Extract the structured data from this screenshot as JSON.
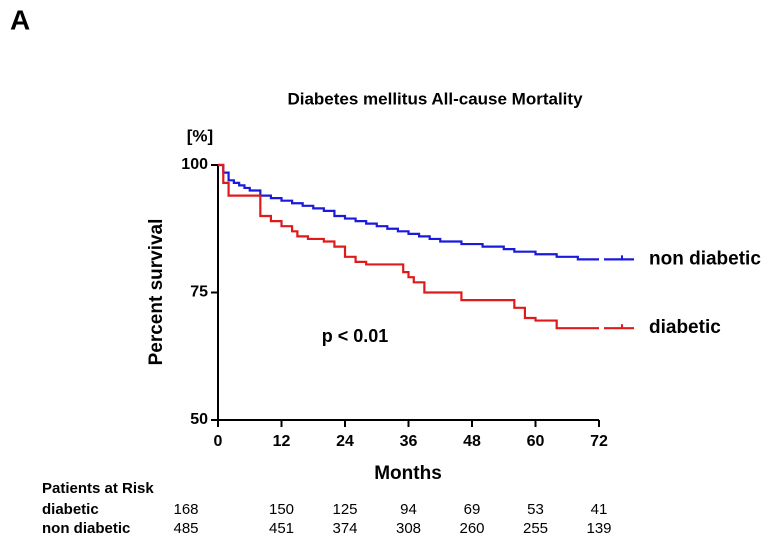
{
  "panel_label": "A",
  "chart_data": {
    "type": "line",
    "step": true,
    "title": "Diabetes mellitus All-cause Mortality",
    "y_unit_label": "[%]",
    "ylabel": "Percent survival",
    "xlabel": "Months",
    "annotation": "p < 0.01",
    "xlim": [
      0,
      72
    ],
    "xticks": [
      0,
      12,
      24,
      36,
      48,
      60,
      72
    ],
    "ylim": [
      50,
      100
    ],
    "yticks": [
      50,
      75,
      100
    ],
    "series": [
      {
        "name": "non diabetic",
        "color": "#1a1adc",
        "x": [
          0,
          1,
          2,
          3,
          4,
          5,
          6,
          8,
          10,
          12,
          14,
          16,
          18,
          20,
          22,
          24,
          26,
          28,
          30,
          32,
          34,
          36,
          38,
          40,
          42,
          46,
          50,
          54,
          56,
          60,
          64,
          68,
          72
        ],
        "values": [
          100,
          98.5,
          97,
          96.5,
          96,
          95.5,
          95,
          94,
          93.5,
          93,
          92.5,
          92,
          91.5,
          91,
          90,
          89.5,
          89,
          88.5,
          88,
          87.5,
          87,
          86.5,
          86,
          85.5,
          85,
          84.5,
          84,
          83.5,
          83,
          82.5,
          82,
          81.5,
          81.5
        ]
      },
      {
        "name": "diabetic",
        "color": "#e01a1a",
        "x": [
          0,
          1,
          2,
          8,
          10,
          12,
          14,
          15,
          17,
          20,
          22,
          24,
          26,
          28,
          34,
          35,
          36,
          37,
          39,
          46,
          56,
          58,
          60,
          64,
          72
        ],
        "values": [
          100,
          96.5,
          94,
          90,
          89,
          88,
          87,
          86,
          85.5,
          85,
          84,
          82,
          81,
          80.5,
          80.5,
          79,
          78,
          77,
          75,
          73.5,
          72,
          70,
          69.5,
          68,
          68
        ]
      }
    ],
    "risk_table": {
      "title": "Patients at Risk",
      "rows": [
        {
          "name": "diabetic",
          "values": [
            168,
            150,
            125,
            94,
            69,
            53,
            41
          ]
        },
        {
          "name": "non diabetic",
          "values": [
            485,
            451,
            374,
            308,
            260,
            255,
            139
          ]
        }
      ]
    }
  }
}
